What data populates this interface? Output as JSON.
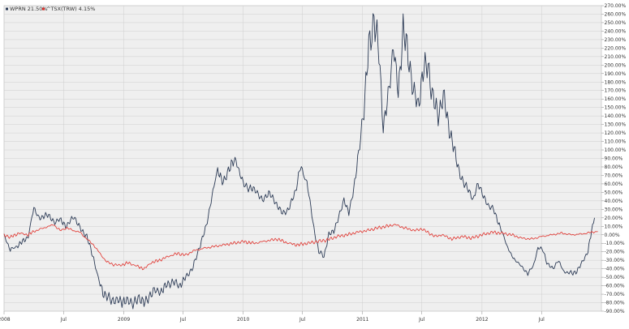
{
  "chart_data": {
    "type": "line",
    "title": "",
    "xlabel": "",
    "ylabel": "",
    "ylim": [
      -90,
      270
    ],
    "yticks": [
      270,
      260,
      250,
      240,
      230,
      220,
      210,
      200,
      190,
      180,
      170,
      160,
      150,
      140,
      130,
      120,
      110,
      100,
      90,
      80,
      70,
      60,
      50,
      40,
      30,
      20,
      10,
      0,
      -10,
      -20,
      -30,
      -40,
      -50,
      -60,
      -70,
      -80,
      -90
    ],
    "ytick_labels": [
      "270.00%",
      "260.00%",
      "250.00%",
      "240.00%",
      "230.00%",
      "220.00%",
      "210.00%",
      "200.00%",
      "190.00%",
      "180.00%",
      "170.00%",
      "160.00%",
      "150.00%",
      "140.00%",
      "130.00%",
      "120.00%",
      "110.00%",
      "100.00%",
      "90.00%",
      "80.00%",
      "70.00%",
      "60.00%",
      "50.00%",
      "40.00%",
      "30.00%",
      "20.00%",
      "10.00%",
      "0.00%",
      "-10.00%",
      "-20.00%",
      "-30.00%",
      "-40.00%",
      "-50.00%",
      "-60.00%",
      "-70.00%",
      "-80.00%",
      "-90.00%"
    ],
    "xlim": [
      "2008-01-01",
      "2012-12-31"
    ],
    "xticks": [
      {
        "label": "2008",
        "date": "2008-01-01"
      },
      {
        "label": "Jul",
        "date": "2008-07-01"
      },
      {
        "label": "2009",
        "date": "2009-01-01"
      },
      {
        "label": "Jul",
        "date": "2009-07-01"
      },
      {
        "label": "2010",
        "date": "2010-01-01"
      },
      {
        "label": "Jul",
        "date": "2010-07-01"
      },
      {
        "label": "2011",
        "date": "2011-01-01"
      },
      {
        "label": "Jul",
        "date": "2011-07-01"
      },
      {
        "label": "2012",
        "date": "2012-01-01"
      },
      {
        "label": "Jul",
        "date": "2012-07-01"
      }
    ],
    "grid": true,
    "legend_position": "top-left",
    "series": [
      {
        "name": "WPRN 21.50%",
        "color": "#2b3a55",
        "points": [
          [
            "2008-01-01",
            0
          ],
          [
            "2008-01-20",
            -18
          ],
          [
            "2008-02-15",
            -12
          ],
          [
            "2008-03-15",
            -2
          ],
          [
            "2008-04-01",
            32
          ],
          [
            "2008-04-20",
            18
          ],
          [
            "2008-05-10",
            25
          ],
          [
            "2008-06-01",
            15
          ],
          [
            "2008-06-20",
            18
          ],
          [
            "2008-07-10",
            10
          ],
          [
            "2008-08-01",
            22
          ],
          [
            "2008-08-20",
            8
          ],
          [
            "2008-09-10",
            -2
          ],
          [
            "2008-10-01",
            -28
          ],
          [
            "2008-10-15",
            -52
          ],
          [
            "2008-11-01",
            -70
          ],
          [
            "2008-11-20",
            -76
          ],
          [
            "2008-12-15",
            -78
          ],
          [
            "2009-01-10",
            -78
          ],
          [
            "2009-02-01",
            -80
          ],
          [
            "2009-02-20",
            -75
          ],
          [
            "2009-03-10",
            -80
          ],
          [
            "2009-04-01",
            -65
          ],
          [
            "2009-04-20",
            -68
          ],
          [
            "2009-05-10",
            -60
          ],
          [
            "2009-06-01",
            -55
          ],
          [
            "2009-06-20",
            -60
          ],
          [
            "2009-07-10",
            -50
          ],
          [
            "2009-08-01",
            -38
          ],
          [
            "2009-08-20",
            -15
          ],
          [
            "2009-09-10",
            10
          ],
          [
            "2009-09-25",
            40
          ],
          [
            "2009-10-15",
            78
          ],
          [
            "2009-11-01",
            60
          ],
          [
            "2009-11-20",
            80
          ],
          [
            "2009-12-10",
            88
          ],
          [
            "2010-01-01",
            60
          ],
          [
            "2010-01-20",
            55
          ],
          [
            "2010-02-10",
            52
          ],
          [
            "2010-03-01",
            40
          ],
          [
            "2010-03-20",
            50
          ],
          [
            "2010-04-10",
            38
          ],
          [
            "2010-05-01",
            25
          ],
          [
            "2010-05-20",
            30
          ],
          [
            "2010-06-10",
            52
          ],
          [
            "2010-06-25",
            80
          ],
          [
            "2010-07-15",
            62
          ],
          [
            "2010-08-05",
            8
          ],
          [
            "2010-08-20",
            -20
          ],
          [
            "2010-09-05",
            -25
          ],
          [
            "2010-09-20",
            0
          ],
          [
            "2010-10-05",
            5
          ],
          [
            "2010-10-20",
            20
          ],
          [
            "2010-11-05",
            42
          ],
          [
            "2010-11-20",
            25
          ],
          [
            "2010-12-05",
            55
          ],
          [
            "2010-12-20",
            95
          ],
          [
            "2011-01-05",
            150
          ],
          [
            "2011-01-20",
            220
          ],
          [
            "2011-02-05",
            255
          ],
          [
            "2011-02-20",
            215
          ],
          [
            "2011-03-05",
            128
          ],
          [
            "2011-03-20",
            160
          ],
          [
            "2011-04-05",
            225
          ],
          [
            "2011-04-20",
            165
          ],
          [
            "2011-05-05",
            245
          ],
          [
            "2011-05-20",
            210
          ],
          [
            "2011-06-05",
            172
          ],
          [
            "2011-06-20",
            150
          ],
          [
            "2011-07-05",
            195
          ],
          [
            "2011-07-20",
            198
          ],
          [
            "2011-08-05",
            160
          ],
          [
            "2011-08-20",
            140
          ],
          [
            "2011-09-05",
            165
          ],
          [
            "2011-09-20",
            130
          ],
          [
            "2011-10-05",
            105
          ],
          [
            "2011-10-20",
            80
          ],
          [
            "2011-11-05",
            60
          ],
          [
            "2011-11-20",
            55
          ],
          [
            "2011-12-05",
            40
          ],
          [
            "2011-12-20",
            62
          ],
          [
            "2012-01-05",
            45
          ],
          [
            "2012-01-20",
            35
          ],
          [
            "2012-02-05",
            30
          ],
          [
            "2012-02-20",
            15
          ],
          [
            "2012-03-05",
            0
          ],
          [
            "2012-03-20",
            -15
          ],
          [
            "2012-04-05",
            -28
          ],
          [
            "2012-04-20",
            -32
          ],
          [
            "2012-05-05",
            -40
          ],
          [
            "2012-05-20",
            -45
          ],
          [
            "2012-06-05",
            -38
          ],
          [
            "2012-06-20",
            -15
          ],
          [
            "2012-07-05",
            -18
          ],
          [
            "2012-07-20",
            -35
          ],
          [
            "2012-08-05",
            -40
          ],
          [
            "2012-08-20",
            -30
          ],
          [
            "2012-09-05",
            -42
          ],
          [
            "2012-09-20",
            -45
          ],
          [
            "2012-10-05",
            -45
          ],
          [
            "2012-10-20",
            -42
          ],
          [
            "2012-11-05",
            -30
          ],
          [
            "2012-11-20",
            -20
          ],
          [
            "2012-12-01",
            5
          ],
          [
            "2012-12-10",
            20
          ]
        ]
      },
      {
        "name": "^TSX(TRW) 4.15%",
        "color": "#e0302a",
        "points": [
          [
            "2008-01-01",
            0
          ],
          [
            "2008-01-20",
            -3
          ],
          [
            "2008-02-15",
            2
          ],
          [
            "2008-03-15",
            0
          ],
          [
            "2008-04-01",
            4
          ],
          [
            "2008-05-01",
            8
          ],
          [
            "2008-06-01",
            12
          ],
          [
            "2008-06-20",
            5
          ],
          [
            "2008-07-10",
            8
          ],
          [
            "2008-08-01",
            5
          ],
          [
            "2008-08-20",
            3
          ],
          [
            "2008-09-10",
            -5
          ],
          [
            "2008-10-01",
            -12
          ],
          [
            "2008-10-20",
            -22
          ],
          [
            "2008-11-10",
            -32
          ],
          [
            "2008-12-01",
            -35
          ],
          [
            "2008-12-20",
            -36
          ],
          [
            "2009-01-15",
            -33
          ],
          [
            "2009-02-10",
            -37
          ],
          [
            "2009-03-05",
            -40
          ],
          [
            "2009-03-25",
            -33
          ],
          [
            "2009-04-20",
            -30
          ],
          [
            "2009-05-20",
            -25
          ],
          [
            "2009-06-15",
            -22
          ],
          [
            "2009-07-10",
            -24
          ],
          [
            "2009-08-01",
            -19
          ],
          [
            "2009-09-01",
            -16
          ],
          [
            "2009-10-01",
            -14
          ],
          [
            "2009-11-01",
            -12
          ],
          [
            "2009-12-01",
            -10
          ],
          [
            "2010-01-01",
            -8
          ],
          [
            "2010-02-05",
            -10
          ],
          [
            "2010-03-01",
            -8
          ],
          [
            "2010-04-15",
            -5
          ],
          [
            "2010-05-20",
            -10
          ],
          [
            "2010-06-15",
            -12
          ],
          [
            "2010-07-15",
            -10
          ],
          [
            "2010-08-15",
            -8
          ],
          [
            "2010-09-15",
            -6
          ],
          [
            "2010-10-15",
            -2
          ],
          [
            "2010-11-15",
            0
          ],
          [
            "2010-12-15",
            3
          ],
          [
            "2011-01-15",
            5
          ],
          [
            "2011-02-15",
            8
          ],
          [
            "2011-03-15",
            10
          ],
          [
            "2011-04-10",
            12
          ],
          [
            "2011-05-10",
            8
          ],
          [
            "2011-06-10",
            5
          ],
          [
            "2011-07-01",
            7
          ],
          [
            "2011-08-10",
            -2
          ],
          [
            "2011-09-01",
            0
          ],
          [
            "2011-10-01",
            -5
          ],
          [
            "2011-11-01",
            -2
          ],
          [
            "2011-12-01",
            -4
          ],
          [
            "2012-01-01",
            0
          ],
          [
            "2012-02-01",
            3
          ],
          [
            "2012-03-01",
            2
          ],
          [
            "2012-04-01",
            0
          ],
          [
            "2012-05-01",
            -4
          ],
          [
            "2012-06-01",
            -5
          ],
          [
            "2012-07-01",
            -2
          ],
          [
            "2012-08-01",
            0
          ],
          [
            "2012-09-01",
            2
          ],
          [
            "2012-10-01",
            0
          ],
          [
            "2012-11-01",
            1
          ],
          [
            "2012-12-01",
            3
          ],
          [
            "2012-12-20",
            4
          ]
        ]
      }
    ]
  }
}
